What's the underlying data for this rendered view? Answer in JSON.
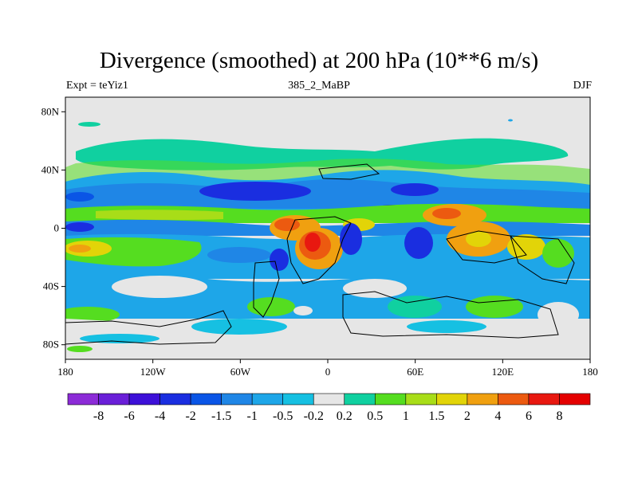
{
  "chart_data": {
    "type": "heatmap",
    "title": "Divergence (smoothed) at 200 hPa (10**6 m/s)",
    "subtitle_left": "Expt = teYiz1",
    "subtitle_center": "385_2_MaBP",
    "subtitle_right": "DJF",
    "x_ticks": [
      "180",
      "120W",
      "60W",
      "0",
      "60E",
      "120E",
      "180"
    ],
    "y_ticks": [
      "80N",
      "40N",
      "0",
      "40S",
      "80S"
    ],
    "xlim": [
      -180,
      180
    ],
    "ylim": [
      -90,
      90
    ],
    "colorbar": {
      "labels": [
        "-8",
        "-6",
        "-4",
        "-2",
        "-1.5",
        "-1",
        "-0.5",
        "-0.2",
        "0.2",
        "0.5",
        "1",
        "1.5",
        "2",
        "4",
        "6",
        "8"
      ],
      "colors": [
        "#8c2bd7",
        "#6a1fd8",
        "#3d10d8",
        "#1a2ee0",
        "#0a55e6",
        "#1f86e6",
        "#1ea6e8",
        "#16c0e2",
        "#e6e6e6",
        "#10d0a0",
        "#55dd20",
        "#a8dd18",
        "#e2d408",
        "#f0a010",
        "#ec5a10",
        "#e81810",
        "#e40000"
      ]
    }
  }
}
